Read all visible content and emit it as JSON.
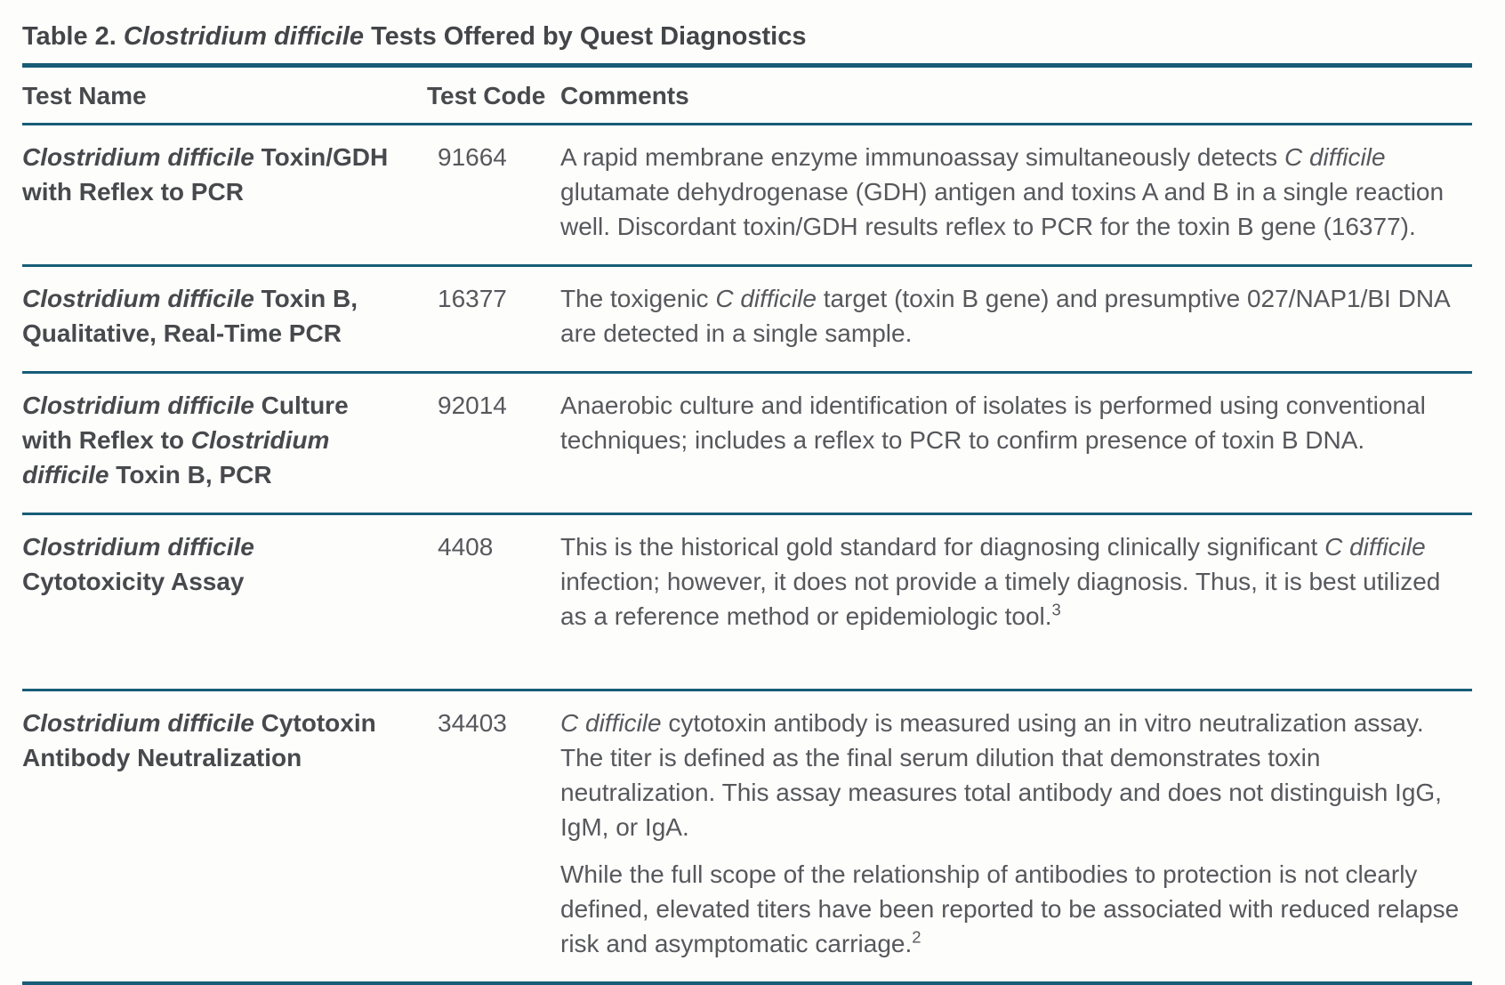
{
  "page": {
    "accent_color": "#175d77",
    "title_segments": [
      {
        "t": "Table 2. "
      },
      {
        "t": "Clostridium difficile",
        "i": true
      },
      {
        "t": " Tests Offered by Quest Diagnostics"
      }
    ]
  },
  "table": {
    "columns": [
      {
        "label": "Test Name"
      },
      {
        "label": "Test Code"
      },
      {
        "label": "Comments"
      }
    ],
    "rows": [
      {
        "name": [
          {
            "t": "Clostridium difficile",
            "i": true
          },
          {
            "t": " Toxin/GDH with Reflex to PCR"
          }
        ],
        "code": "91664",
        "comments": [
          [
            {
              "t": "A rapid membrane enzyme immunoassay simultaneously detects "
            },
            {
              "t": "C difficile",
              "i": true
            },
            {
              "t": " glutamate dehydrogenase (GDH) antigen and toxins A and B in a single reaction well. Discordant toxin/GDH results reflex to PCR for the toxin B gene (16377)."
            }
          ]
        ]
      },
      {
        "name": [
          {
            "t": "Clostridium difficile",
            "i": true
          },
          {
            "t": " Toxin B, Qualitative, Real-Time PCR"
          }
        ],
        "code": "16377",
        "comments": [
          [
            {
              "t": "The toxigenic "
            },
            {
              "t": "C difficile",
              "i": true
            },
            {
              "t": " target (toxin B gene) and presumptive 027/NAP1/BI DNA are detected in a single sample."
            }
          ]
        ]
      },
      {
        "name": [
          {
            "t": "Clostridium difficile",
            "i": true
          },
          {
            "t": " Culture with Reflex to "
          },
          {
            "t": "Clostridium difficile",
            "i": true
          },
          {
            "t": " Toxin B, PCR"
          }
        ],
        "code": "92014",
        "comments": [
          [
            {
              "t": "Anaerobic culture and identification of isolates is performed using conventional techniques; includes a reflex to PCR to confirm presence of toxin B DNA."
            }
          ]
        ]
      },
      {
        "name": [
          {
            "t": "Clostridium difficile",
            "i": true
          },
          {
            "t": " Cytotoxicity Assay"
          }
        ],
        "code": "4408",
        "comments": [
          [
            {
              "t": "This is the historical gold standard for diagnosing clinically significant "
            },
            {
              "t": "C difficile",
              "i": true
            },
            {
              "t": " infection; however, it does not provide a timely diagnosis. Thus, it is best utilized as a reference method or epidemiologic tool."
            },
            {
              "t": "3",
              "sup": true
            }
          ]
        ]
      },
      {
        "name": [
          {
            "t": "Clostridium difficile",
            "i": true
          },
          {
            "t": " Cytotoxin Antibody Neutralization"
          }
        ],
        "code": "34403",
        "comments": [
          [
            {
              "t": "C difficile",
              "i": true
            },
            {
              "t": " cytotoxin antibody is measured using an in vitro neutralization assay. The titer is defined as the final serum dilution that demonstrates toxin neutralization. This assay measures total antibody and does not distinguish IgG, IgM, or IgA."
            }
          ],
          [
            {
              "t": "While the full scope of the relationship of antibodies to protection is not clearly defined, elevated titers have been reported to be associated with reduced relapse risk and asymptomatic carriage."
            },
            {
              "t": "2",
              "sup": true
            }
          ]
        ]
      }
    ]
  }
}
